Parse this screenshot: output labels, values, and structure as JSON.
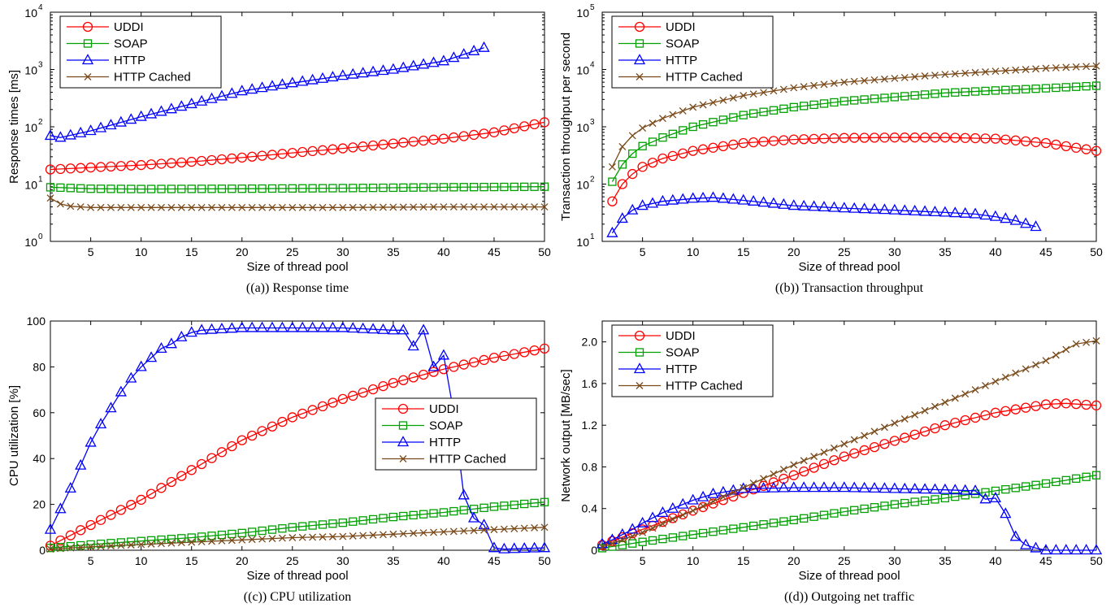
{
  "figure": {
    "colors": {
      "UDDI": "#ff0000",
      "SOAP": "#00a000",
      "HTTP": "#0000ff",
      "HTTP Cached": "#7a4a1a"
    },
    "markers": {
      "UDDI": "circle",
      "SOAP": "square",
      "HTTP": "triangle",
      "HTTP Cached": "x"
    }
  },
  "chart_data": [
    {
      "type": "line",
      "caption": "((a)) Response time",
      "xlabel": "Size of thread pool",
      "ylabel": "Response times [ms]",
      "xlim": [
        1,
        50
      ],
      "ylim": [
        1,
        10000
      ],
      "yscale": "log",
      "xticks": [
        5,
        10,
        15,
        20,
        25,
        30,
        35,
        40,
        45,
        50
      ],
      "yticks": [
        {
          "base": "10",
          "exp": "0",
          "v": 1
        },
        {
          "base": "10",
          "exp": "1",
          "v": 10
        },
        {
          "base": "10",
          "exp": "2",
          "v": 100
        },
        {
          "base": "10",
          "exp": "3",
          "v": 1000
        },
        {
          "base": "10",
          "exp": "4",
          "v": 10000
        }
      ],
      "legend": "top-left",
      "series": [
        {
          "name": "UDDI",
          "x": [
            1,
            5,
            10,
            15,
            20,
            25,
            30,
            35,
            40,
            45,
            50
          ],
          "y": [
            18,
            19.5,
            21.5,
            24.5,
            29,
            35,
            42,
            51,
            62,
            80,
            120
          ]
        },
        {
          "name": "SOAP",
          "x": [
            1,
            5,
            10,
            20,
            30,
            40,
            50
          ],
          "y": [
            8.8,
            8.3,
            8.2,
            8.3,
            8.5,
            8.8,
            9
          ]
        },
        {
          "name": "HTTP",
          "x": [
            1,
            2,
            5,
            10,
            15,
            20,
            25,
            30,
            35,
            40,
            44
          ],
          "y": [
            70,
            65,
            85,
            150,
            250,
            420,
            580,
            780,
            1000,
            1400,
            2400
          ]
        },
        {
          "name": "HTTP Cached",
          "x": [
            1,
            2,
            3,
            5,
            10,
            20,
            30,
            40,
            50
          ],
          "y": [
            5.7,
            4.5,
            4.1,
            3.9,
            3.9,
            3.9,
            3.9,
            4.0,
            4.0
          ]
        }
      ]
    },
    {
      "type": "line",
      "caption": "((b)) Transaction throughput",
      "xlabel": "Size of thread pool",
      "ylabel": "Transaction throughput per second",
      "xlim": [
        1,
        50
      ],
      "ylim": [
        10,
        100000
      ],
      "yscale": "log",
      "xticks": [
        5,
        10,
        15,
        20,
        25,
        30,
        35,
        40,
        45,
        50
      ],
      "yticks": [
        {
          "base": "10",
          "exp": "1",
          "v": 10
        },
        {
          "base": "10",
          "exp": "2",
          "v": 100
        },
        {
          "base": "10",
          "exp": "3",
          "v": 1000
        },
        {
          "base": "10",
          "exp": "4",
          "v": 10000
        },
        {
          "base": "10",
          "exp": "5",
          "v": 100000
        }
      ],
      "legend": "top-left",
      "series": [
        {
          "name": "UDDI",
          "x": [
            2,
            3,
            4,
            5,
            7,
            10,
            15,
            20,
            25,
            30,
            35,
            40,
            45,
            50
          ],
          "y": [
            50,
            100,
            150,
            200,
            280,
            380,
            520,
            600,
            640,
            650,
            650,
            620,
            520,
            380
          ]
        },
        {
          "name": "SOAP",
          "x": [
            2,
            3,
            4,
            5,
            7,
            10,
            15,
            20,
            25,
            30,
            35,
            40,
            45,
            50
          ],
          "y": [
            110,
            220,
            340,
            460,
            650,
            1000,
            1600,
            2200,
            2800,
            3300,
            3900,
            4300,
            4700,
            5200
          ]
        },
        {
          "name": "HTTP",
          "x": [
            2,
            3,
            4,
            5,
            7,
            10,
            12,
            15,
            20,
            25,
            30,
            35,
            38,
            40,
            42,
            44
          ],
          "y": [
            14,
            25,
            35,
            42,
            50,
            56,
            58,
            52,
            42,
            38,
            35,
            32,
            30,
            27,
            23,
            18
          ]
        },
        {
          "name": "HTTP Cached",
          "x": [
            2,
            3,
            4,
            5,
            7,
            10,
            15,
            20,
            25,
            30,
            35,
            40,
            45,
            50
          ],
          "y": [
            200,
            450,
            700,
            950,
            1400,
            2200,
            3500,
            4800,
            6000,
            7000,
            8200,
            9300,
            10500,
            11500
          ]
        }
      ]
    },
    {
      "type": "line",
      "caption": "((c)) CPU utilization",
      "xlabel": "Size of thread pool",
      "ylabel": "CPU utilization [%]",
      "xlim": [
        1,
        50
      ],
      "ylim": [
        0,
        100
      ],
      "yscale": "linear",
      "xticks": [
        5,
        10,
        15,
        20,
        25,
        30,
        35,
        40,
        45,
        50
      ],
      "yticks": [
        {
          "label": "0",
          "v": 0
        },
        {
          "label": "20",
          "v": 20
        },
        {
          "label": "40",
          "v": 40
        },
        {
          "label": "60",
          "v": 60
        },
        {
          "label": "80",
          "v": 80
        },
        {
          "label": "100",
          "v": 100
        }
      ],
      "legend": "middle-right",
      "series": [
        {
          "name": "UDDI",
          "x": [
            1,
            5,
            10,
            15,
            20,
            25,
            30,
            35,
            40,
            45,
            50
          ],
          "y": [
            2,
            11,
            22,
            35,
            48,
            58,
            66,
            73,
            79,
            84,
            88
          ]
        },
        {
          "name": "SOAP",
          "x": [
            1,
            5,
            10,
            15,
            20,
            25,
            30,
            35,
            40,
            45,
            50
          ],
          "y": [
            1,
            2.5,
            4,
            5.5,
            7.5,
            10,
            12,
            14.5,
            16.5,
            19,
            21
          ]
        },
        {
          "name": "HTTP",
          "x": [
            1,
            2,
            3,
            4,
            5,
            6,
            7,
            8,
            9,
            10,
            11,
            12,
            13,
            14,
            15,
            16,
            20,
            25,
            30,
            35,
            36,
            37,
            38,
            39,
            40,
            41,
            42,
            43,
            44,
            45,
            46,
            50
          ],
          "y": [
            9,
            18,
            27,
            37,
            47,
            55,
            62,
            69,
            75,
            80,
            84,
            88,
            90,
            93,
            95,
            96,
            97,
            97,
            97,
            96,
            96,
            89,
            96,
            80,
            85,
            60,
            24,
            14,
            11,
            1,
            0.5,
            1
          ]
        },
        {
          "name": "HTTP Cached",
          "x": [
            1,
            5,
            10,
            15,
            20,
            25,
            30,
            35,
            40,
            45,
            50
          ],
          "y": [
            0.5,
            1.5,
            2.5,
            3.5,
            4.5,
            5.5,
            6,
            7,
            8,
            9,
            10
          ]
        }
      ]
    },
    {
      "type": "line",
      "caption": "((d)) Outgoing net traffic",
      "xlabel": "Size of thread pool",
      "ylabel": "Network output [MB/sec]",
      "xlim": [
        1,
        50
      ],
      "ylim": [
        0,
        2.2
      ],
      "yscale": "linear",
      "xticks": [
        5,
        10,
        15,
        20,
        25,
        30,
        35,
        40,
        45,
        50
      ],
      "yticks": [
        {
          "label": "0",
          "v": 0
        },
        {
          "label": "0.4",
          "v": 0.4
        },
        {
          "label": "0.8",
          "v": 0.8
        },
        {
          "label": "1.2",
          "v": 1.2
        },
        {
          "label": "1.6",
          "v": 1.6
        },
        {
          "label": "2.0",
          "v": 2.0
        }
      ],
      "legend": "top-left",
      "series": [
        {
          "name": "UDDI",
          "x": [
            1,
            5,
            10,
            15,
            20,
            25,
            30,
            35,
            40,
            45,
            47,
            50
          ],
          "y": [
            0.05,
            0.2,
            0.38,
            0.55,
            0.72,
            0.9,
            1.05,
            1.2,
            1.32,
            1.4,
            1.41,
            1.39
          ]
        },
        {
          "name": "SOAP",
          "x": [
            1,
            5,
            10,
            15,
            20,
            25,
            30,
            35,
            40,
            45,
            50
          ],
          "y": [
            0.02,
            0.08,
            0.15,
            0.22,
            0.29,
            0.37,
            0.44,
            0.5,
            0.57,
            0.64,
            0.72
          ]
        },
        {
          "name": "HTTP",
          "x": [
            1,
            2,
            3,
            4,
            5,
            7,
            10,
            12,
            15,
            20,
            25,
            30,
            35,
            38,
            39,
            40,
            41,
            42,
            43,
            44,
            45,
            50
          ],
          "y": [
            0.06,
            0.1,
            0.15,
            0.2,
            0.26,
            0.36,
            0.48,
            0.54,
            0.59,
            0.6,
            0.6,
            0.59,
            0.58,
            0.57,
            0.49,
            0.5,
            0.35,
            0.13,
            0.05,
            0.02,
            0,
            0
          ]
        },
        {
          "name": "HTTP Cached",
          "x": [
            1,
            5,
            10,
            15,
            20,
            25,
            30,
            35,
            40,
            45,
            48,
            50
          ],
          "y": [
            0.03,
            0.17,
            0.38,
            0.6,
            0.82,
            1.02,
            1.22,
            1.42,
            1.62,
            1.82,
            1.98,
            2.01
          ]
        }
      ]
    }
  ]
}
